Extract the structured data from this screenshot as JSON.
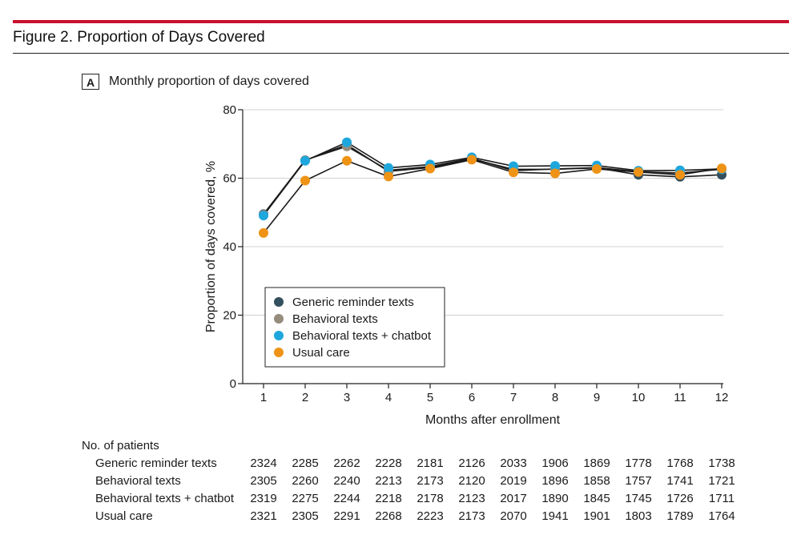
{
  "figure": {
    "title": "Figure 2. Proportion of Days Covered",
    "panel_letter": "A",
    "panel_title": "Monthly proportion of days covered"
  },
  "colors": {
    "top_rule": "#c8102e",
    "line": "#1a1a1a",
    "gridline": "#d0d0d0"
  },
  "chart_data": {
    "type": "line",
    "xlabel": "Months after enrollment",
    "ylabel": "Proportion of days covered, %",
    "ylim": [
      0,
      80
    ],
    "yticks": [
      0,
      20,
      40,
      60,
      80
    ],
    "x": [
      1,
      2,
      3,
      4,
      5,
      6,
      7,
      8,
      9,
      10,
      11,
      12
    ],
    "grid": "horizontal",
    "legend_position": "bottom-left",
    "series": [
      {
        "name": "Generic reminder texts",
        "color": "#34505e",
        "values": [
          49.5,
          65.2,
          69.8,
          62.0,
          63.1,
          65.6,
          62.6,
          62.6,
          63.0,
          61.0,
          60.4,
          61.0
        ]
      },
      {
        "name": "Behavioral texts",
        "color": "#968c7e",
        "values": [
          49.3,
          65.3,
          69.3,
          62.3,
          63.4,
          65.8,
          62.2,
          62.7,
          63.1,
          61.9,
          61.5,
          62.6
        ]
      },
      {
        "name": "Behavioral texts + chatbot",
        "color": "#1ea7dd",
        "values": [
          49.1,
          65.1,
          70.5,
          63.0,
          64.0,
          66.1,
          63.5,
          63.6,
          63.7,
          62.2,
          62.3,
          62.7
        ]
      },
      {
        "name": "Usual care",
        "color": "#ee9316",
        "values": [
          44.0,
          59.3,
          65.1,
          60.5,
          62.8,
          65.4,
          61.7,
          61.4,
          62.7,
          61.8,
          61.0,
          62.9
        ]
      }
    ]
  },
  "patients_table": {
    "heading": "No. of patients",
    "rows": [
      {
        "label": "Generic reminder texts",
        "values": [
          "2324",
          "2285",
          "2262",
          "2228",
          "2181",
          "2126",
          "2033",
          "1906",
          "1869",
          "1778",
          "1768",
          "1738"
        ]
      },
      {
        "label": "Behavioral texts",
        "values": [
          "2305",
          "2260",
          "2240",
          "2213",
          "2173",
          "2120",
          "2019",
          "1896",
          "1858",
          "1757",
          "1741",
          "1721"
        ]
      },
      {
        "label": "Behavioral texts + chatbot",
        "values": [
          "2319",
          "2275",
          "2244",
          "2218",
          "2178",
          "2123",
          "2017",
          "1890",
          "1845",
          "1745",
          "1726",
          "1711"
        ]
      },
      {
        "label": "Usual care",
        "values": [
          "2321",
          "2305",
          "2291",
          "2268",
          "2223",
          "2173",
          "2070",
          "1941",
          "1901",
          "1803",
          "1789",
          "1764"
        ]
      }
    ]
  }
}
